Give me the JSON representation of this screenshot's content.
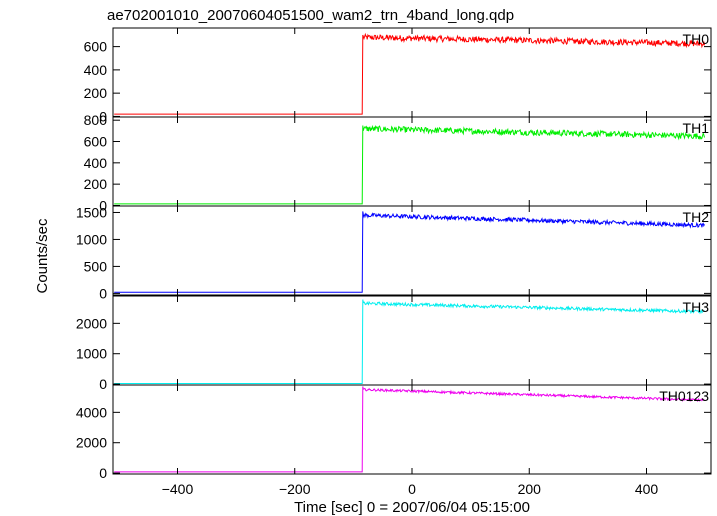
{
  "chart_data": {
    "type": "line",
    "title": "ae702001010_20070604051500_wam2_trn_4band_long.qdp",
    "xlabel": "Time [sec] 0 = 2007/06/04 05:15:00",
    "ylabel": "Counts/sec",
    "xlim": [
      -510,
      510
    ],
    "x_ticks": [
      -400,
      -200,
      0,
      200,
      400
    ],
    "x_tick_labels": [
      "−400",
      "−200",
      "0",
      "200",
      "400"
    ],
    "burst_onset_x": -85,
    "panels": [
      {
        "name": "TH0",
        "color": "#ff0000",
        "ylim": [
          -5,
          760
        ],
        "y_ticks": [
          0,
          200,
          400,
          600
        ],
        "y_tick_labels": [
          "0",
          "200",
          "400",
          "600"
        ],
        "pre_level": 20,
        "peak": 700,
        "post_start": 680,
        "post_end": 625,
        "noise": 26
      },
      {
        "name": "TH1",
        "color": "#00ee00",
        "ylim": [
          -5,
          830
        ],
        "y_ticks": [
          0,
          200,
          400,
          600,
          800
        ],
        "y_tick_labels": [
          "0",
          "200",
          "400",
          "600",
          "800"
        ],
        "pre_level": 15,
        "peak": 750,
        "post_start": 720,
        "post_end": 650,
        "noise": 28
      },
      {
        "name": "TH2",
        "color": "#0000ff",
        "ylim": [
          -30,
          1620
        ],
        "y_ticks": [
          0,
          500,
          1000,
          1500
        ],
        "y_tick_labels": [
          "0",
          "500",
          "1000",
          "1500"
        ],
        "pre_level": 20,
        "peak": 1520,
        "post_start": 1450,
        "post_end": 1260,
        "noise": 38
      },
      {
        "name": "TH3",
        "color": "#00eeee",
        "ylim": [
          -30,
          2900
        ],
        "y_ticks": [
          0,
          1000,
          2000
        ],
        "y_tick_labels": [
          "0",
          "1000",
          "2000"
        ],
        "pre_level": 20,
        "peak": 2780,
        "post_start": 2660,
        "post_end": 2380,
        "noise": 50
      },
      {
        "name": "TH0123",
        "color": "#ee00ee",
        "ylim": [
          -60,
          5800
        ],
        "y_ticks": [
          0,
          2000,
          4000
        ],
        "y_tick_labels": [
          "0",
          "2000",
          "4000"
        ],
        "pre_level": 80,
        "peak": 5700,
        "post_start": 5500,
        "post_end": 4800,
        "noise": 75
      }
    ]
  }
}
